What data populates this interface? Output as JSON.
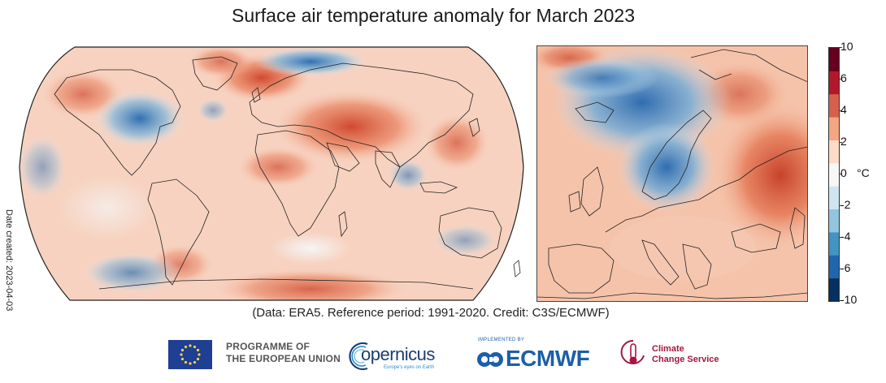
{
  "title": "Surface air temperature anomaly for March 2023",
  "date_created": "Date created: 2023-04-03",
  "credit": "(Data: ERA5.  Reference period: 1991-2020.  Credit: C3S/ECMWF)",
  "colorbar": {
    "unit": "°C",
    "ticks": [
      "10",
      "6",
      "4",
      "2",
      "0",
      "-2",
      "-4",
      "-6",
      "-10"
    ],
    "colors": [
      "#053061",
      "#2166ac",
      "#4393c3",
      "#92c5de",
      "#d1e5f0",
      "#f7f7f7",
      "#fddbc7",
      "#f4a582",
      "#d6604d",
      "#b2182b",
      "#67001f"
    ]
  },
  "maps": {
    "world": {
      "name": "Global surface air temperature anomaly",
      "projection": "Robinson"
    },
    "europe": {
      "name": "Europe surface air temperature anomaly"
    }
  },
  "logos": {
    "eu_line1": "PROGRAMME OF",
    "eu_line2": "THE EUROPEAN UNION",
    "copernicus_name": "opernicus",
    "copernicus_tagline": "Europe's eyes on Earth",
    "ecmwf_implemented": "IMPLEMENTED BY",
    "ecmwf_name": "ECMWF",
    "c3s_line1": "Climate",
    "c3s_line2": "Change Service"
  }
}
